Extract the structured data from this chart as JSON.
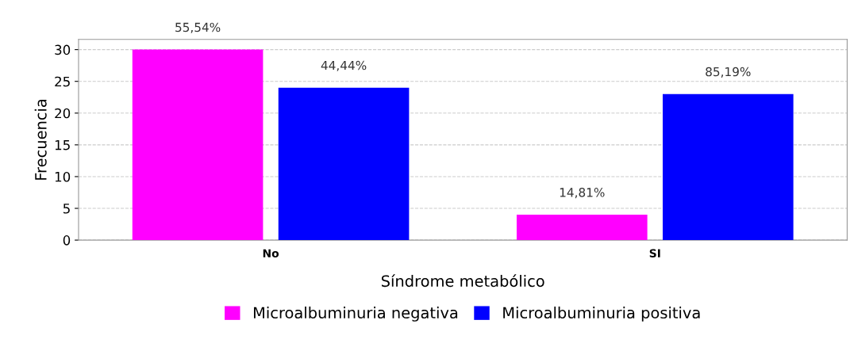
{
  "chart_data": {
    "type": "bar",
    "xlabel": "Síndrome metabólico",
    "ylabel": "Frecuencia",
    "categories": [
      "No",
      "SI"
    ],
    "series": [
      {
        "name": "Microalbuminuria negativa",
        "color": "#ff00ff",
        "values": [
          30,
          4
        ]
      },
      {
        "name": "Microalbuminuria positiva",
        "color": "#0000ff",
        "values": [
          24,
          23
        ]
      }
    ],
    "annotations": [
      "55,54%",
      "44,44%",
      "14,81%",
      "85,19%"
    ],
    "ylim": [
      0,
      31.6
    ],
    "yticks": [
      0,
      5,
      10,
      15,
      20,
      25,
      30
    ],
    "grid": "y",
    "legend": "bottom"
  }
}
